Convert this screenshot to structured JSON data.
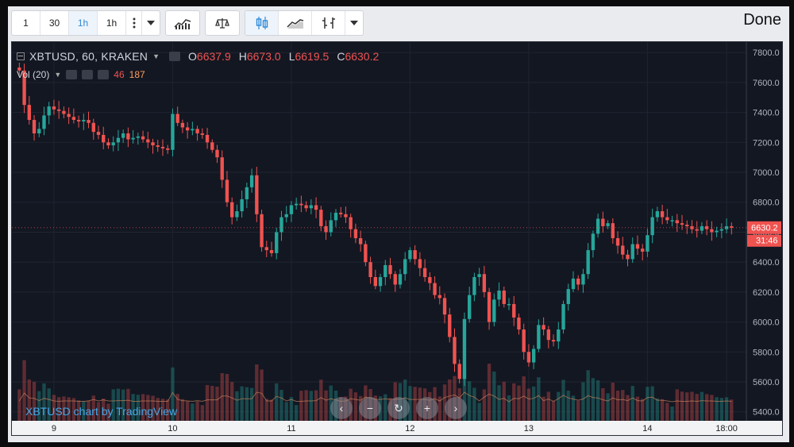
{
  "toolbar": {
    "intervals": [
      "1",
      "30",
      "1h",
      "1h"
    ],
    "active_interval_index": 2,
    "done_label": "Done"
  },
  "legend": {
    "symbol": "XBTUSD, 60, KRAKEN",
    "o_label": "O",
    "o_value": "6637.9",
    "h_label": "H",
    "h_value": "6673.0",
    "l_label": "L",
    "l_value": "6619.5",
    "c_label": "C",
    "c_value": "6630.2"
  },
  "volume": {
    "label": "Vol (20)",
    "value_a": "46",
    "value_b": "187"
  },
  "watermark": "XBTUSD chart by TradingView",
  "price_tag": {
    "price": "6630.2",
    "countdown": "31:46"
  },
  "colors": {
    "up": "#26a69a",
    "down": "#ef5350",
    "accent": "#2f8ad8",
    "background": "#131722"
  },
  "chart_data": {
    "type": "candlestick",
    "y_axis_ticks": [
      "7800.0",
      "7600.0",
      "7400.0",
      "7200.0",
      "7000.0",
      "6800.0",
      "6600.0",
      "6400.0",
      "6200.0",
      "6000.0",
      "5800.0",
      "5600.0",
      "5400.0"
    ],
    "ylim": [
      5340,
      7870
    ],
    "x_axis_ticks": [
      "9",
      "10",
      "11",
      "12",
      "13",
      "14",
      "18:00"
    ],
    "x_tick_times": [
      8,
      32,
      56,
      80,
      104,
      128,
      144
    ],
    "xlim": [
      -0.5,
      148
    ],
    "series_close": [
      7700,
      7680,
      7450,
      7350,
      7260,
      7290,
      7380,
      7440,
      7420,
      7410,
      7390,
      7370,
      7350,
      7340,
      7350,
      7330,
      7270,
      7250,
      7200,
      7180,
      7200,
      7230,
      7260,
      7220,
      7230,
      7240,
      7220,
      7200,
      7180,
      7170,
      7160,
      7150,
      7390,
      7330,
      7300,
      7280,
      7290,
      7260,
      7250,
      7200,
      7150,
      7100,
      6950,
      6800,
      6700,
      6740,
      6820,
      6900,
      6980,
      6720,
      6500,
      6480,
      6460,
      6600,
      6700,
      6720,
      6780,
      6790,
      6780,
      6760,
      6780,
      6750,
      6640,
      6600,
      6680,
      6730,
      6720,
      6700,
      6620,
      6560,
      6520,
      6400,
      6300,
      6240,
      6300,
      6380,
      6320,
      6250,
      6320,
      6420,
      6480,
      6420,
      6360,
      6300,
      6260,
      6180,
      6160,
      6050,
      5900,
      5720,
      5620,
      6020,
      6180,
      6300,
      6320,
      6200,
      6000,
      6150,
      6210,
      6120,
      6120,
      6030,
      5950,
      5800,
      5730,
      5820,
      5980,
      5950,
      5880,
      5870,
      5950,
      6120,
      6220,
      6290,
      6250,
      6320,
      6480,
      6590,
      6690,
      6640,
      6660,
      6560,
      6510,
      6450,
      6420,
      6520,
      6490,
      6470,
      6580,
      6700,
      6740,
      6700,
      6680,
      6680,
      6660,
      6650,
      6640,
      6620,
      6610,
      6640,
      6620,
      6600,
      6610,
      6620,
      6640,
      6630
    ],
    "volume_note": "volume histogram bars at bottom"
  }
}
